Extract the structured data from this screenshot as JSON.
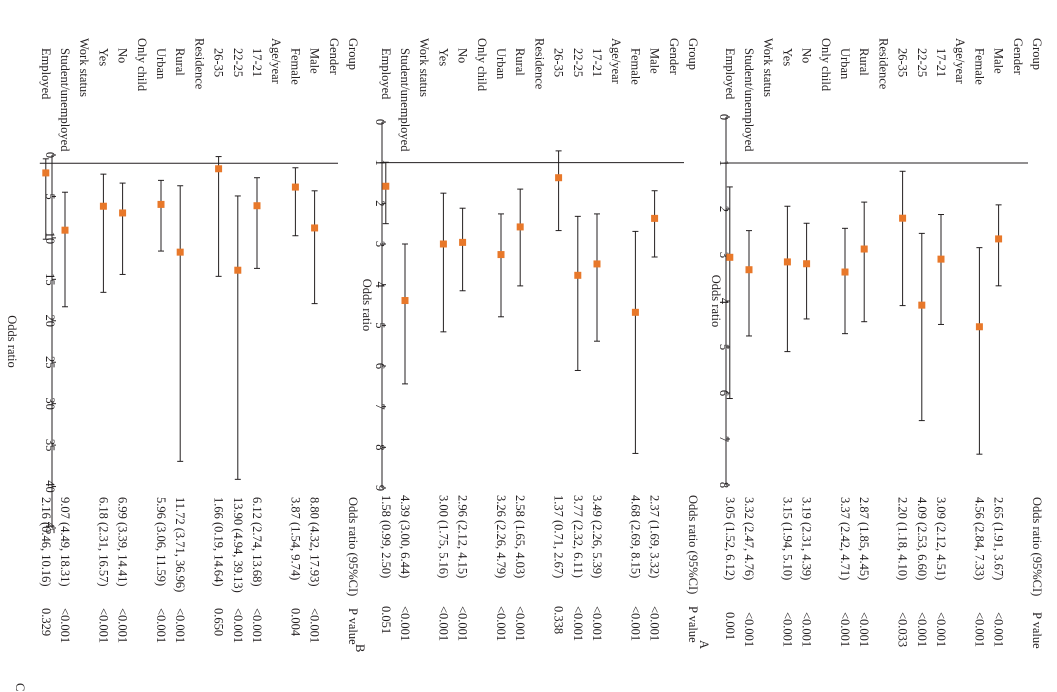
{
  "rows": [
    {
      "kind": "group",
      "label": "Group"
    },
    {
      "kind": "group",
      "label": "Gender"
    },
    {
      "kind": "item",
      "label": "Male"
    },
    {
      "kind": "item",
      "label": "Female"
    },
    {
      "kind": "group",
      "label": "Age/year"
    },
    {
      "kind": "item",
      "label": "17-21"
    },
    {
      "kind": "item",
      "label": "22-25"
    },
    {
      "kind": "item",
      "label": "26-35"
    },
    {
      "kind": "group",
      "label": "Residence"
    },
    {
      "kind": "item",
      "label": "Rural"
    },
    {
      "kind": "item",
      "label": "Urban"
    },
    {
      "kind": "group",
      "label": "Only child"
    },
    {
      "kind": "item",
      "label": "No"
    },
    {
      "kind": "item",
      "label": "Yes"
    },
    {
      "kind": "group",
      "label": "Work status"
    },
    {
      "kind": "item",
      "label": "Student/unemployed"
    },
    {
      "kind": "item",
      "label": "Employed"
    }
  ],
  "chart_data": [
    {
      "type": "forest",
      "panel": "A",
      "xlabel": "Odds ratio",
      "xlim": [
        0,
        8
      ],
      "ticks": [
        "0",
        "1",
        "2",
        "3",
        "4",
        "5",
        "6",
        "7",
        "8"
      ],
      "ref_line": 1,
      "header_or": "Odds ratio (95%CI)",
      "header_p": "P value",
      "entries": [
        {
          "row": 2,
          "or": 2.65,
          "lo": 1.91,
          "hi": 3.67,
          "text": "2.65 (1.91, 3.67)",
          "p": "<0.001"
        },
        {
          "row": 3,
          "or": 4.56,
          "lo": 2.84,
          "hi": 7.33,
          "text": "4.56 (2.84, 7.33)",
          "p": "<0.001"
        },
        {
          "row": 5,
          "or": 3.09,
          "lo": 2.12,
          "hi": 4.51,
          "text": "3.09 (2.12, 4.51)",
          "p": "<0.001"
        },
        {
          "row": 6,
          "or": 4.09,
          "lo": 2.53,
          "hi": 6.6,
          "text": "4.09 (2.53, 6.60)",
          "p": "<0.001"
        },
        {
          "row": 7,
          "or": 2.2,
          "lo": 1.18,
          "hi": 4.1,
          "text": "2.20 (1.18, 4.10)",
          "p": "<0.033"
        },
        {
          "row": 9,
          "or": 2.87,
          "lo": 1.85,
          "hi": 4.45,
          "text": "2.87 (1.85, 4.45)",
          "p": "<0.001"
        },
        {
          "row": 10,
          "or": 3.37,
          "lo": 2.42,
          "hi": 4.71,
          "text": "3.37 (2.42, 4.71)",
          "p": "<0.001"
        },
        {
          "row": 12,
          "or": 3.19,
          "lo": 2.31,
          "hi": 4.39,
          "text": "3.19 (2.31, 4.39)",
          "p": "<0.001"
        },
        {
          "row": 13,
          "or": 3.15,
          "lo": 1.94,
          "hi": 5.1,
          "text": "3.15 (1.94, 5.10)",
          "p": "<0.001"
        },
        {
          "row": 15,
          "or": 3.32,
          "lo": 2.47,
          "hi": 4.76,
          "text": "3.32 (2.47, 4.76)",
          "p": "<0.001"
        },
        {
          "row": 16,
          "or": 3.05,
          "lo": 1.52,
          "hi": 6.12,
          "text": "3.05 (1.52, 6.12)",
          "p": "0.001"
        }
      ]
    },
    {
      "type": "forest",
      "panel": "B",
      "xlabel": "Odds ratio",
      "xlim": [
        0,
        9
      ],
      "ticks": [
        "0",
        "1",
        "2",
        "3",
        "4",
        "5",
        "6",
        "7",
        "8",
        "9"
      ],
      "ref_line": 1,
      "header_or": "Odds ratio (95%CI)",
      "header_p": "P value",
      "entries": [
        {
          "row": 2,
          "or": 2.37,
          "lo": 1.69,
          "hi": 3.32,
          "text": "2.37 (1.69, 3.32)",
          "p": "<0.001"
        },
        {
          "row": 3,
          "or": 4.68,
          "lo": 2.69,
          "hi": 8.15,
          "text": "4.68 (2.69, 8.15)",
          "p": "<0.001"
        },
        {
          "row": 5,
          "or": 3.49,
          "lo": 2.26,
          "hi": 5.39,
          "text": "3.49 (2.26, 5.39)",
          "p": "<0.001"
        },
        {
          "row": 6,
          "or": 3.77,
          "lo": 2.32,
          "hi": 6.11,
          "text": "3.77 (2.32, 6.11)",
          "p": "<0.001"
        },
        {
          "row": 7,
          "or": 1.37,
          "lo": 0.71,
          "hi": 2.67,
          "text": "1.37 (0.71, 2.67)",
          "p": "0.338"
        },
        {
          "row": 9,
          "or": 2.58,
          "lo": 1.65,
          "hi": 4.03,
          "text": "2.58 (1.65, 4.03)",
          "p": "<0.001"
        },
        {
          "row": 10,
          "or": 3.26,
          "lo": 2.26,
          "hi": 4.79,
          "text": "3.26 (2.26, 4.79)",
          "p": "<0.001"
        },
        {
          "row": 12,
          "or": 2.96,
          "lo": 2.12,
          "hi": 4.15,
          "text": "2.96 (2.12, 4.15)",
          "p": "<0.001"
        },
        {
          "row": 13,
          "or": 3.0,
          "lo": 1.75,
          "hi": 5.16,
          "text": "3.00 (1.75, 5.16)",
          "p": "<0.001"
        },
        {
          "row": 15,
          "or": 4.39,
          "lo": 3.0,
          "hi": 6.44,
          "text": "4.39 (3.00, 6.44)",
          "p": "<0.001"
        },
        {
          "row": 16,
          "or": 1.58,
          "lo": 0.99,
          "hi": 2.5,
          "text": "1.58 (0.99, 2.50)",
          "p": "0.051"
        }
      ]
    },
    {
      "type": "forest",
      "panel": "C",
      "xlabel": "Odds ratio",
      "xlim": [
        0,
        45
      ],
      "ticks": [
        "0",
        "5",
        "10",
        "15",
        "20",
        "25",
        "30",
        "35",
        "40",
        "45"
      ],
      "ref_line": 1,
      "header_or": "Odds ratio (95%CI)",
      "header_p": "P value",
      "entries": [
        {
          "row": 2,
          "or": 8.8,
          "lo": 4.32,
          "hi": 17.93,
          "text": "8.80 (4.32, 17.93)",
          "p": "<0.001"
        },
        {
          "row": 3,
          "or": 3.87,
          "lo": 1.54,
          "hi": 9.74,
          "text": "3.87 (1.54, 9.74)",
          "p": "0.004"
        },
        {
          "row": 5,
          "or": 6.12,
          "lo": 2.74,
          "hi": 13.68,
          "text": "6.12 (2.74, 13.68)",
          "p": "<0.001"
        },
        {
          "row": 6,
          "or": 13.9,
          "lo": 4.94,
          "hi": 39.13,
          "text": "13.90 (4.94, 39.13)",
          "p": "<0.001"
        },
        {
          "row": 7,
          "or": 1.66,
          "lo": 0.19,
          "hi": 14.64,
          "text": "1.66 (0.19, 14.64)",
          "p": "0.650"
        },
        {
          "row": 9,
          "or": 11.72,
          "lo": 3.71,
          "hi": 36.96,
          "text": "11.72 (3.71, 36.96)",
          "p": "<0.001"
        },
        {
          "row": 10,
          "or": 5.96,
          "lo": 3.06,
          "hi": 11.59,
          "text": "5.96 (3.06, 11.59)",
          "p": "<0.001"
        },
        {
          "row": 12,
          "or": 6.99,
          "lo": 3.39,
          "hi": 14.41,
          "text": "6.99 (3.39, 14.41)",
          "p": "<0.001"
        },
        {
          "row": 13,
          "or": 6.18,
          "lo": 2.31,
          "hi": 16.57,
          "text": "6.18 (2.31, 16.57)",
          "p": "<0.001"
        },
        {
          "row": 15,
          "or": 9.07,
          "lo": 4.49,
          "hi": 18.31,
          "text": "9.07 (4.49, 18.31)",
          "p": "<0.001"
        },
        {
          "row": 16,
          "or": 2.16,
          "lo": 0.46,
          "hi": 10.16,
          "text": "2.16 (0.46, 10.16)",
          "p": "0.329"
        }
      ]
    }
  ],
  "colors": {
    "marker": "#e8782a",
    "ink": "#231f20",
    "background": "#ffffff"
  }
}
